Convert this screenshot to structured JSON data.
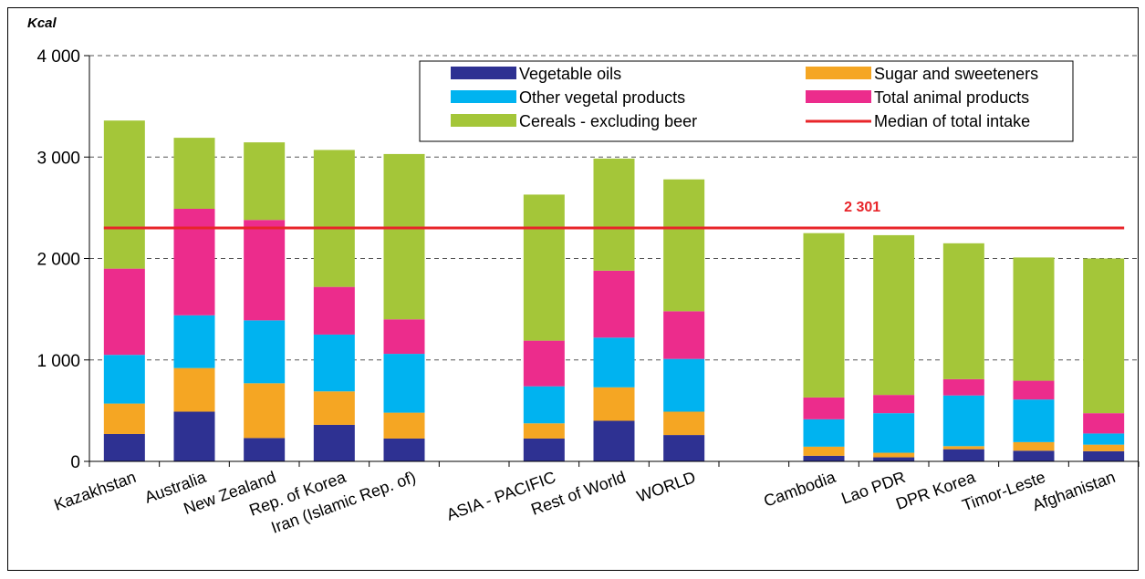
{
  "chart_data": {
    "type": "bar",
    "stacked": true,
    "ylabel": "Kcal",
    "ylim": [
      0,
      4000
    ],
    "yticks": [
      {
        "value": 0,
        "label": "0"
      },
      {
        "value": 1000,
        "label": "1 000"
      },
      {
        "value": 2000,
        "label": "2 000"
      },
      {
        "value": 3000,
        "label": "3 000"
      },
      {
        "value": 4000,
        "label": "4 000"
      }
    ],
    "grid": true,
    "legend_position": "top-right",
    "categories": [
      "Kazakhstan",
      "Australia",
      "New Zealand",
      "Rep. of Korea",
      "Iran (Islamic Rep. of)",
      "",
      "ASIA - PACIFIC",
      "Rest of World",
      "WORLD",
      "",
      "Cambodia",
      "Lao PDR",
      "DPR Korea",
      "Timor-Leste",
      "Afghanistan"
    ],
    "series": [
      {
        "name": "Vegetable oils",
        "color": "#2e3192",
        "values": [
          270,
          490,
          230,
          360,
          225,
          null,
          225,
          400,
          260,
          null,
          55,
          40,
          120,
          105,
          100
        ]
      },
      {
        "name": "Sugar and sweeteners",
        "color": "#f5a623",
        "values": [
          300,
          430,
          540,
          330,
          255,
          null,
          150,
          330,
          230,
          null,
          90,
          45,
          30,
          85,
          65
        ]
      },
      {
        "name": "Other vegetal products",
        "color": "#00b3f0",
        "values": [
          480,
          520,
          620,
          560,
          580,
          null,
          365,
          490,
          520,
          null,
          270,
          390,
          500,
          420,
          110
        ]
      },
      {
        "name": "Total animal products",
        "color": "#ec2c8c",
        "values": [
          850,
          1050,
          990,
          470,
          340,
          null,
          450,
          660,
          470,
          null,
          215,
          180,
          160,
          185,
          200
        ]
      },
      {
        "name": "Cereals - excluding beer",
        "color": "#a4c639",
        "values": [
          1460,
          700,
          765,
          1350,
          1630,
          null,
          1440,
          1105,
          1300,
          null,
          1620,
          1575,
          1340,
          1215,
          1525
        ]
      }
    ],
    "median": {
      "name": "Median of total intake",
      "value": 2301,
      "label": "2 301",
      "color": "#e8252a"
    }
  }
}
